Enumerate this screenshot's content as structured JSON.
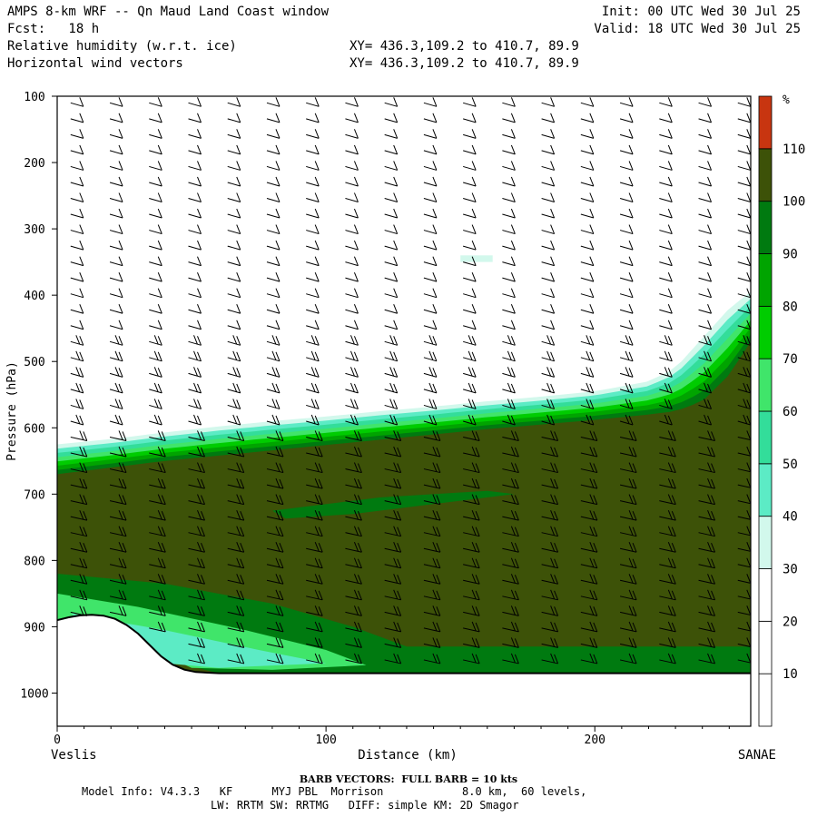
{
  "header": {
    "title_line": "AMPS 8-km WRF -- Qn Maud Land Coast window",
    "fcst_line": "Fcst:   18 h",
    "init_line": "Init: 00 UTC Wed 30 Jul 25",
    "valid_line": "Valid: 18 UTC Wed 30 Jul 25",
    "field1": "Relative humidity (w.r.t. ice)",
    "field2": "Horizontal wind vectors",
    "xy1": "XY= 436.3,109.2 to 410.7, 89.9",
    "xy2": "XY= 436.3,109.2 to 410.7, 89.9"
  },
  "chart_data": {
    "type": "heatmap",
    "title": "",
    "xlabel": "Distance (km)",
    "ylabel": "Pressure (hPa)",
    "xlim": [
      0,
      258
    ],
    "ylim": [
      100,
      1050
    ],
    "y_reversed": true,
    "x_ticks": [
      0,
      100,
      200
    ],
    "y_ticks": [
      100,
      200,
      300,
      400,
      500,
      600,
      700,
      800,
      900,
      1000
    ],
    "x_end_labels": {
      "left": "Veslis",
      "right": "SANAE"
    },
    "colorbar": {
      "unit": "%",
      "levels": [
        10,
        20,
        30,
        40,
        50,
        60,
        70,
        80,
        90,
        100,
        110
      ],
      "colors": [
        "#ffffff",
        "#ffffff",
        "#ffffff",
        "#d2f8ec",
        "#5cebc5",
        "#33dd9a",
        "#40e56a",
        "#00cc00",
        "#00a400",
        "#007a10",
        "#3d5208",
        "#c83510"
      ]
    },
    "moist_layer_top_hpa": {
      "x": [
        0,
        20,
        40,
        60,
        80,
        100,
        120,
        140,
        160,
        180,
        200,
        220,
        230,
        240,
        250,
        258
      ],
      "p": [
        625,
        617,
        607,
        598,
        590,
        583,
        575,
        568,
        560,
        553,
        545,
        530,
        510,
        465,
        420,
        395
      ]
    },
    "saturated_layer_top_hpa": {
      "x": [
        0,
        20,
        40,
        60,
        80,
        100,
        120,
        140,
        160,
        180,
        200,
        220,
        230,
        240,
        250,
        258
      ],
      "p": [
        670,
        660,
        650,
        642,
        634,
        626,
        618,
        610,
        602,
        595,
        588,
        580,
        575,
        560,
        520,
        470
      ]
    },
    "terrain_hpa": {
      "x": [
        0,
        5,
        10,
        15,
        20,
        25,
        30,
        35,
        40,
        45,
        50,
        60,
        258
      ],
      "p": [
        890,
        885,
        882,
        882,
        885,
        895,
        910,
        930,
        950,
        962,
        968,
        970,
        970
      ]
    },
    "wind_note": "BARB VECTORS:  FULL BARB = 10 kts"
  },
  "footer": {
    "barb_title": "BARB VECTORS:  FULL BARB = 10 kts",
    "line1": "Model Info: V4.3.3   KF      MYJ PBL  Morrison            8.0 km,  60 levels,",
    "line2": "LW: RRTM SW: RRTMG   DIFF: simple KM: 2D Smagor"
  }
}
